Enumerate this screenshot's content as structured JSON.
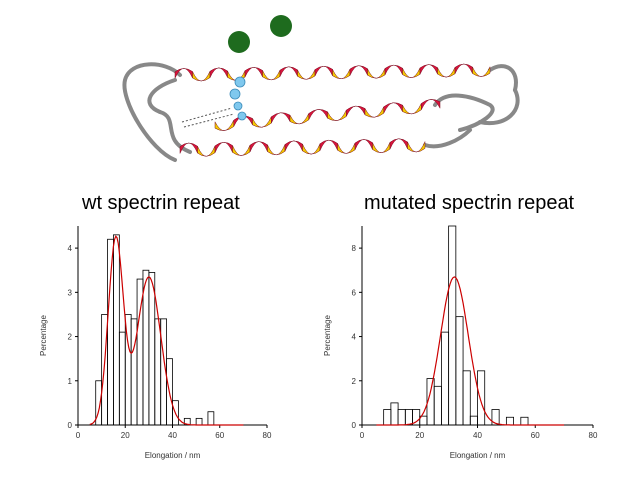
{
  "colors": {
    "helix_red": "#d8143c",
    "helix_yellow": "#f4cc00",
    "loop": "#808080",
    "knob": "#1e6b1e",
    "bead": "#7fc8ee",
    "fit": "#cc0000",
    "bar": "#000000"
  },
  "protein_image": {
    "icon": "spectrin-helix-bundle-ribbon"
  },
  "chart_data": [
    {
      "type": "bar",
      "title": "wt spectrin repeat",
      "xlabel": "Elongation / nm",
      "ylabel": "Percentage",
      "xlim": [
        0,
        80
      ],
      "ylim": [
        0,
        4.5
      ],
      "xticks": [
        0,
        20,
        40,
        60,
        80
      ],
      "yticks": [
        0,
        1,
        2,
        3,
        4
      ],
      "bin_width": 2.5,
      "bins": [
        {
          "x": 7.5,
          "y": 1.0
        },
        {
          "x": 10,
          "y": 2.5
        },
        {
          "x": 12.5,
          "y": 4.2
        },
        {
          "x": 15,
          "y": 4.3
        },
        {
          "x": 17.5,
          "y": 2.1
        },
        {
          "x": 20,
          "y": 2.5
        },
        {
          "x": 22.5,
          "y": 2.4
        },
        {
          "x": 25,
          "y": 3.3
        },
        {
          "x": 27.5,
          "y": 3.5
        },
        {
          "x": 30,
          "y": 3.45
        },
        {
          "x": 32.5,
          "y": 2.4
        },
        {
          "x": 35,
          "y": 2.4
        },
        {
          "x": 37.5,
          "y": 1.5
        },
        {
          "x": 40,
          "y": 0.55
        },
        {
          "x": 45,
          "y": 0.15
        },
        {
          "x": 50,
          "y": 0.15
        },
        {
          "x": 55,
          "y": 0.3
        }
      ],
      "fit": {
        "type": "gaussian-sum",
        "components": [
          {
            "amp": 4.2,
            "mean": 16,
            "sd": 3.2
          },
          {
            "amp": 3.35,
            "mean": 30,
            "sd": 5.0
          }
        ]
      }
    },
    {
      "type": "bar",
      "title": "mutated spectrin repeat",
      "xlabel": "Elongation / nm",
      "ylabel": "Percentage",
      "xlim": [
        0,
        80
      ],
      "ylim": [
        0,
        9
      ],
      "xticks": [
        0,
        20,
        40,
        60,
        80
      ],
      "yticks": [
        0,
        2,
        4,
        6,
        8
      ],
      "bin_width": 2.5,
      "bins": [
        {
          "x": 7.5,
          "y": 0.7
        },
        {
          "x": 10,
          "y": 1.0
        },
        {
          "x": 12.5,
          "y": 0.7
        },
        {
          "x": 15,
          "y": 0.7
        },
        {
          "x": 17.5,
          "y": 0.7
        },
        {
          "x": 20,
          "y": 0.4
        },
        {
          "x": 22.5,
          "y": 2.1
        },
        {
          "x": 25,
          "y": 1.75
        },
        {
          "x": 27.5,
          "y": 4.2
        },
        {
          "x": 30,
          "y": 9.0
        },
        {
          "x": 32.5,
          "y": 4.9
        },
        {
          "x": 35,
          "y": 2.45
        },
        {
          "x": 37.5,
          "y": 0.4
        },
        {
          "x": 40,
          "y": 2.45
        },
        {
          "x": 45,
          "y": 0.7
        },
        {
          "x": 50,
          "y": 0.35
        },
        {
          "x": 55,
          "y": 0.35
        }
      ],
      "fit": {
        "type": "gaussian-sum",
        "components": [
          {
            "amp": 6.7,
            "mean": 32,
            "sd": 4.8
          }
        ]
      }
    }
  ]
}
